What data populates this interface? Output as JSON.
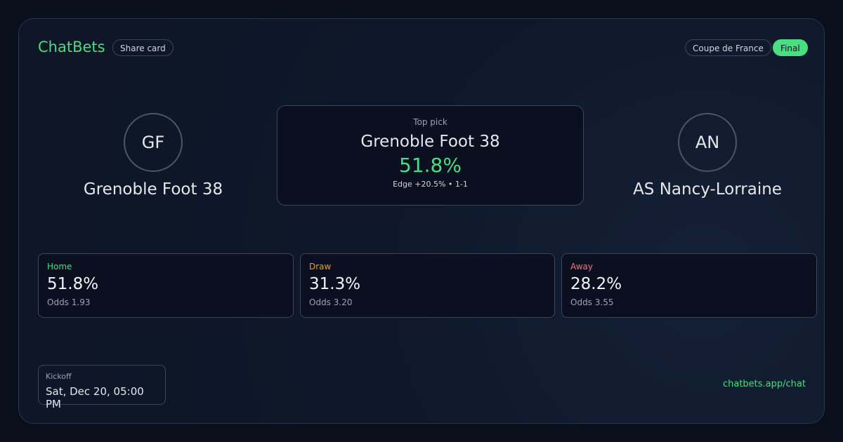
{
  "header": {
    "brand": "ChatBets",
    "share": "Share card",
    "competition": "Coupe de France",
    "status": "Final"
  },
  "home_team": {
    "initials": "GF",
    "name": "Grenoble Foot 38"
  },
  "away_team": {
    "initials": "AN",
    "name": "AS Nancy-Lorraine"
  },
  "top_pick": {
    "label": "Top pick",
    "team": "Grenoble Foot 38",
    "probability": "51.8%",
    "detail": "Edge +20.5% • 1-1"
  },
  "outcomes": [
    {
      "label": "Home",
      "probability": "51.8%",
      "odds": "Odds 1.93"
    },
    {
      "label": "Draw",
      "probability": "31.3%",
      "odds": "Odds 3.20"
    },
    {
      "label": "Away",
      "probability": "28.2%",
      "odds": "Odds 3.55"
    }
  ],
  "kickoff": {
    "label": "Kickoff",
    "time": "Sat, Dec 20, 05:00 PM"
  },
  "footer": {
    "link": "chatbets.app/chat"
  }
}
